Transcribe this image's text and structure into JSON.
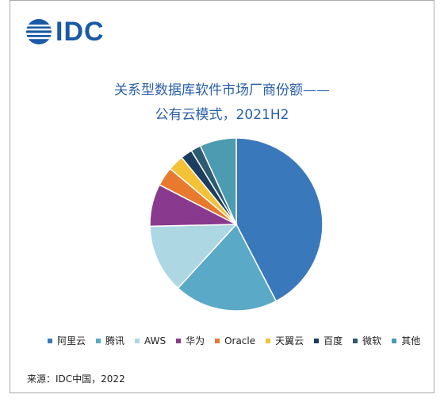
{
  "logo": {
    "text": "IDC"
  },
  "chart_data": {
    "type": "pie",
    "title": [
      "关系型数据库软件市场厂商份额——",
      "公有云模式，2021H2"
    ],
    "series": [
      {
        "name": "阿里云",
        "value": 42.8,
        "color": "#3a78bc"
      },
      {
        "name": "腾讯",
        "value": 19.6,
        "color": "#5aa9c7"
      },
      {
        "name": "AWS",
        "value": 13.0,
        "color": "#aed7e4"
      },
      {
        "name": "华为",
        "value": 8.0,
        "color": "#8a3a8e"
      },
      {
        "name": "Oracle",
        "value": 3.6,
        "color": "#e87a2e"
      },
      {
        "name": "天翼云",
        "value": 3.0,
        "color": "#f3c237"
      },
      {
        "name": "百度",
        "value": 2.2,
        "color": "#1b3d5e"
      },
      {
        "name": "微软",
        "value": 1.9,
        "color": "#2e5a72"
      },
      {
        "name": "其他",
        "value": 6.9,
        "color": "#4d9bb0"
      }
    ],
    "legend_position": "bottom"
  },
  "source": "来源：IDC中国，2022"
}
